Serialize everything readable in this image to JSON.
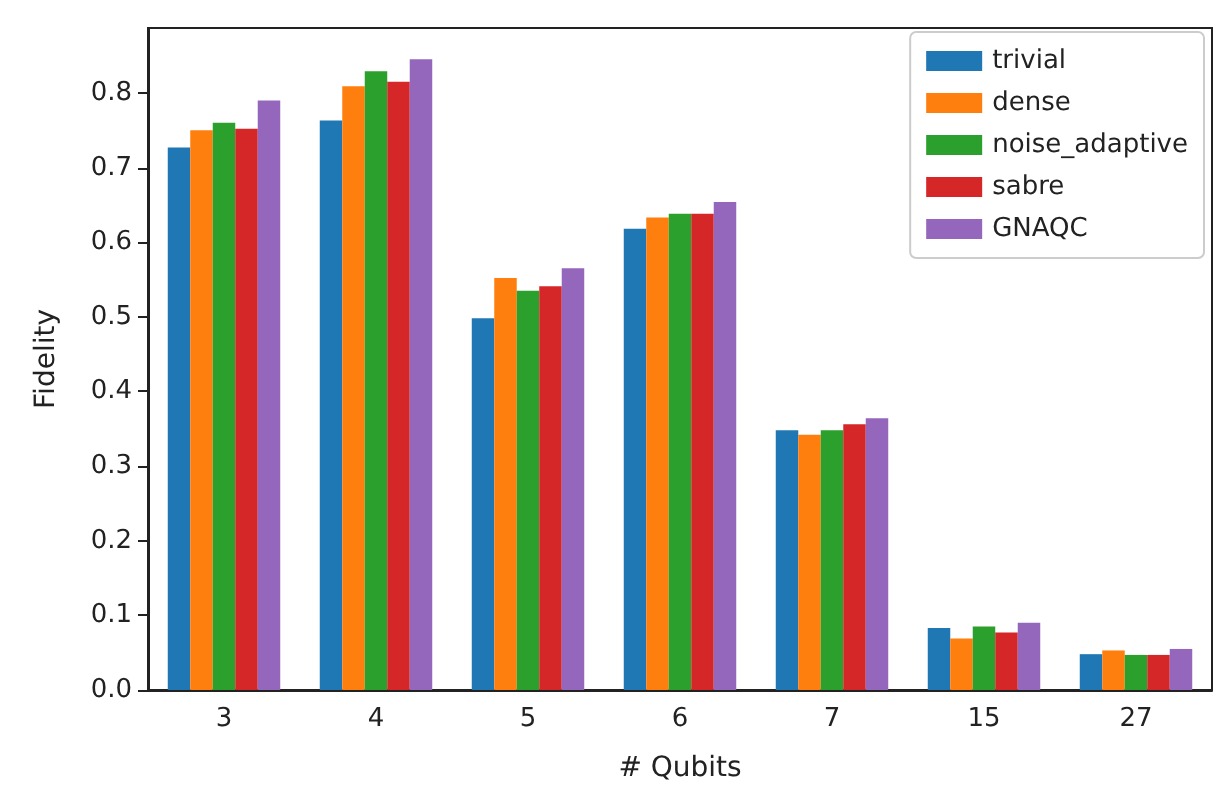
{
  "chart_data": {
    "type": "bar",
    "xlabel": "# Qubits",
    "ylabel": "Fidelity",
    "categories": [
      "3",
      "4",
      "5",
      "6",
      "7",
      "15",
      "27"
    ],
    "series": [
      {
        "name": "trivial",
        "color": "#1f77b4",
        "values": [
          0.727,
          0.763,
          0.498,
          0.618,
          0.348,
          0.083,
          0.048
        ]
      },
      {
        "name": "dense",
        "color": "#ff7f0e",
        "values": [
          0.75,
          0.809,
          0.552,
          0.633,
          0.342,
          0.069,
          0.053
        ]
      },
      {
        "name": "noise_adaptive",
        "color": "#2ca02c",
        "values": [
          0.76,
          0.829,
          0.535,
          0.638,
          0.348,
          0.085,
          0.047
        ]
      },
      {
        "name": "sabre",
        "color": "#d62728",
        "values": [
          0.752,
          0.815,
          0.541,
          0.638,
          0.356,
          0.077,
          0.047
        ]
      },
      {
        "name": "GNAQC",
        "color": "#9467bd",
        "values": [
          0.79,
          0.845,
          0.565,
          0.654,
          0.364,
          0.09,
          0.055
        ]
      }
    ],
    "ylim": [
      0,
      0.887
    ],
    "yticks": [
      {
        "value": 0,
        "label": "0.0"
      },
      0.1,
      0.2,
      0.3,
      0.4,
      0.5,
      0.6,
      0.7,
      0.8
    ],
    "grid": false,
    "legend": "top right"
  }
}
